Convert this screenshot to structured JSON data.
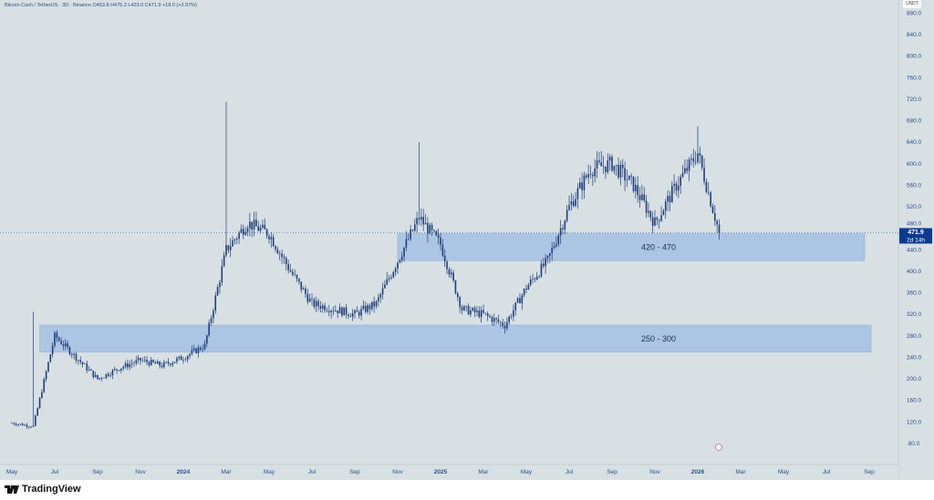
{
  "header": {
    "symbol_line": "Bitcoin Cash / TetherUS · 3D · Binance  O453.8  H475.3  L423.0  C471.9  +18.0 (+3.97%)",
    "currency": "USDT"
  },
  "footer": {
    "brand": "TradingView"
  },
  "colors": {
    "background": "#d8e0e3",
    "candle": "#1f3f7c",
    "zone": "#a6c0e4",
    "axis_text": "#2a4f8f",
    "last_price_bg": "#0d3a8f"
  },
  "chart_data": {
    "type": "candlestick",
    "title": "Bitcoin Cash / TetherUS · 3D · Binance",
    "ylabel": "USDT",
    "ylim": [
      60,
      880
    ],
    "y_ticks": [
      880,
      840,
      800,
      760,
      720,
      680,
      640,
      600,
      560,
      520,
      480,
      440,
      400,
      360,
      320,
      280,
      240,
      200,
      160,
      120,
      80
    ],
    "x_ticks": [
      "May",
      "Jul",
      "Sep",
      "Nov",
      "2024",
      "Mar",
      "May",
      "Jul",
      "Sep",
      "Nov",
      "2025",
      "Mar",
      "May",
      "Jul",
      "Sep",
      "Nov",
      "2026",
      "Mar",
      "May",
      "Jul",
      "Sep"
    ],
    "x_tick_month_index": [
      0,
      2,
      4,
      6,
      8,
      10,
      12,
      14,
      16,
      18,
      20,
      22,
      24,
      26,
      28,
      30,
      32,
      34,
      36,
      38,
      40
    ],
    "approx_monthly_closes": {
      "months": [
        "2023-05",
        "2023-06",
        "2023-07",
        "2023-08",
        "2023-09",
        "2023-10",
        "2023-11",
        "2023-12",
        "2024-01",
        "2024-02",
        "2024-03",
        "2024-04",
        "2024-05",
        "2024-06",
        "2024-07",
        "2024-08",
        "2024-09",
        "2024-10",
        "2024-11",
        "2024-12",
        "2025-01",
        "2025-02",
        "2025-03",
        "2025-04",
        "2025-05",
        "2025-06",
        "2025-07",
        "2025-08",
        "2025-09",
        "2025-10",
        "2025-11",
        "2025-12",
        "2026-01",
        "2026-02"
      ],
      "close": [
        118,
        112,
        280,
        240,
        200,
        220,
        235,
        225,
        240,
        262,
        440,
        490,
        470,
        400,
        340,
        330,
        320,
        340,
        420,
        500,
        450,
        330,
        320,
        300,
        370,
        420,
        520,
        590,
        600,
        560,
        490,
        560,
        620,
        471.9
      ]
    },
    "highs": {
      "2023-06": 325,
      "2024-03": 715,
      "2024-12": 640,
      "2026-01": 670
    },
    "zones": [
      {
        "label": "420 - 470",
        "low": 420,
        "high": 470,
        "from_month": 18
      },
      {
        "label": "250 - 300",
        "low": 250,
        "high": 300,
        "from_month": 1.3
      }
    ],
    "last_price": {
      "value": "471.9",
      "countdown": "2d 14h"
    }
  }
}
